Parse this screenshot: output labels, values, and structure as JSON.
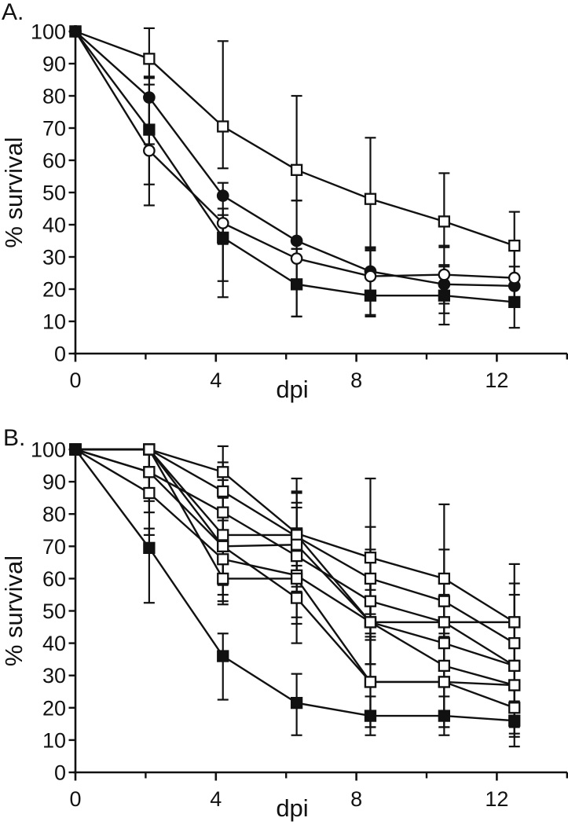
{
  "page": {
    "background": "#ffffff",
    "ink": "#111111"
  },
  "figure": {
    "panel_labels": [
      "A.",
      "B."
    ]
  },
  "chart_data": [
    {
      "id": "A",
      "panel_label": "A.",
      "type": "line",
      "xlabel": "dpi",
      "ylabel": "% survival",
      "xlim": [
        0,
        14
      ],
      "ylim": [
        0,
        100
      ],
      "xticks_major": [
        0,
        4,
        8,
        12
      ],
      "xticks_minor": [
        2,
        6,
        10,
        14
      ],
      "yticks": [
        0,
        10,
        20,
        30,
        40,
        50,
        60,
        70,
        80,
        90,
        100
      ],
      "grid": false,
      "legend": "none",
      "x": [
        0,
        2.1,
        4.2,
        6.3,
        8.4,
        10.5,
        12.5
      ],
      "series": [
        {
          "name": "open-square",
          "marker": "square-open",
          "values": [
            100,
            91.5,
            70.5,
            57,
            48,
            41,
            33.5
          ],
          "err_up": [
            0,
            9.5,
            26.5,
            23,
            19,
            15,
            10.5
          ],
          "err_down": [
            0,
            5.5,
            13,
            9.5,
            15,
            8,
            10
          ]
        },
        {
          "name": "filled-circle",
          "marker": "circle-filled",
          "values": [
            100,
            79.5,
            49,
            35,
            25.5,
            21.5,
            21
          ],
          "err_up": [
            0,
            6,
            4,
            12.5,
            7,
            6,
            6
          ],
          "err_down": [
            0,
            14.5,
            15,
            12,
            7,
            6,
            6
          ]
        },
        {
          "name": "open-circle",
          "marker": "circle-open",
          "values": [
            100,
            63,
            40.5,
            29.5,
            24,
            24.5,
            23.5
          ],
          "err_up": [
            0,
            16,
            4.5,
            3,
            9,
            9,
            9
          ],
          "err_down": [
            0,
            17,
            23,
            18,
            12,
            12,
            9
          ]
        },
        {
          "name": "filled-square",
          "marker": "square-filled",
          "values": [
            100,
            69.5,
            36,
            21.5,
            18,
            18,
            16
          ],
          "err_up": [
            0,
            14,
            7,
            11,
            14,
            9,
            7
          ],
          "err_down": [
            0,
            17,
            13.5,
            10,
            6.5,
            9,
            8
          ]
        }
      ]
    },
    {
      "id": "B",
      "panel_label": "B.",
      "type": "line",
      "xlabel": "dpi",
      "ylabel": "% survival",
      "xlim": [
        0,
        14
      ],
      "ylim": [
        0,
        100
      ],
      "xticks_major": [
        0,
        4,
        8,
        12
      ],
      "xticks_minor": [
        2,
        6,
        10,
        14
      ],
      "yticks": [
        0,
        10,
        20,
        30,
        40,
        50,
        60,
        70,
        80,
        90,
        100
      ],
      "grid": false,
      "legend": "none",
      "x": [
        0,
        2.1,
        4.2,
        6.3,
        8.4,
        10.5,
        12.5
      ],
      "series": [
        {
          "name": "open-square-1",
          "marker": "square-open",
          "values": [
            100,
            100,
            93,
            74,
            66.5,
            60,
            46.5
          ],
          "err_up": [
            0,
            0,
            8,
            17,
            24.5,
            23,
            18
          ],
          "err_down": [
            0,
            0,
            8,
            10,
            10,
            12,
            12
          ]
        },
        {
          "name": "open-square-2",
          "marker": "square-open",
          "values": [
            100,
            100,
            87,
            73,
            60,
            53,
            40
          ],
          "err_up": [
            0,
            0,
            9,
            14,
            16,
            16,
            15
          ],
          "err_down": [
            0,
            0,
            9,
            11,
            11,
            12,
            12
          ]
        },
        {
          "name": "open-square-3",
          "marker": "square-open",
          "values": [
            100,
            93,
            80.5,
            67,
            53,
            46.5,
            33
          ],
          "err_up": [
            0,
            7,
            10,
            15,
            16,
            15,
            14
          ],
          "err_down": [
            0,
            12.5,
            10,
            11,
            12,
            12,
            12
          ]
        },
        {
          "name": "open-square-4",
          "marker": "square-open",
          "values": [
            100,
            100,
            73.5,
            73.5,
            46.5,
            46.5,
            46.5
          ],
          "err_up": [
            0,
            0,
            12,
            13,
            14,
            14,
            12
          ],
          "err_down": [
            0,
            0,
            12,
            12,
            13,
            13,
            13
          ]
        },
        {
          "name": "open-square-5",
          "marker": "square-open",
          "values": [
            100,
            100,
            70,
            70.5,
            46.5,
            40,
            33
          ],
          "err_up": [
            0,
            0,
            12,
            13,
            14,
            15,
            14
          ],
          "err_down": [
            0,
            0,
            15,
            13,
            13,
            13,
            13
          ]
        },
        {
          "name": "open-square-6",
          "marker": "square-open",
          "values": [
            100,
            86.5,
            66,
            61,
            46.5,
            33,
            27
          ],
          "err_up": [
            0,
            13.5,
            13,
            14,
            14,
            15,
            14
          ],
          "err_down": [
            0,
            13,
            13,
            13,
            13,
            14,
            13
          ]
        },
        {
          "name": "open-square-7",
          "marker": "square-open",
          "values": [
            100,
            100,
            60,
            60,
            28,
            28,
            27
          ],
          "err_up": [
            0,
            0,
            13,
            14,
            15,
            15,
            14
          ],
          "err_down": [
            0,
            0,
            8,
            14,
            14,
            14,
            15
          ]
        },
        {
          "name": "open-square-8",
          "marker": "square-open",
          "values": [
            100,
            93,
            70,
            54,
            28,
            28,
            20
          ],
          "err_up": [
            0,
            7,
            12,
            14,
            14,
            14,
            14
          ],
          "err_down": [
            0,
            9,
            12,
            14,
            14,
            14,
            9
          ]
        },
        {
          "name": "filled-square",
          "marker": "square-filled",
          "values": [
            100,
            69.5,
            36,
            21.5,
            17.5,
            17.5,
            16
          ],
          "err_up": [
            0,
            6,
            7,
            9,
            6,
            6,
            6
          ],
          "err_down": [
            0,
            17,
            13.5,
            10,
            6,
            6,
            8
          ]
        }
      ]
    }
  ]
}
